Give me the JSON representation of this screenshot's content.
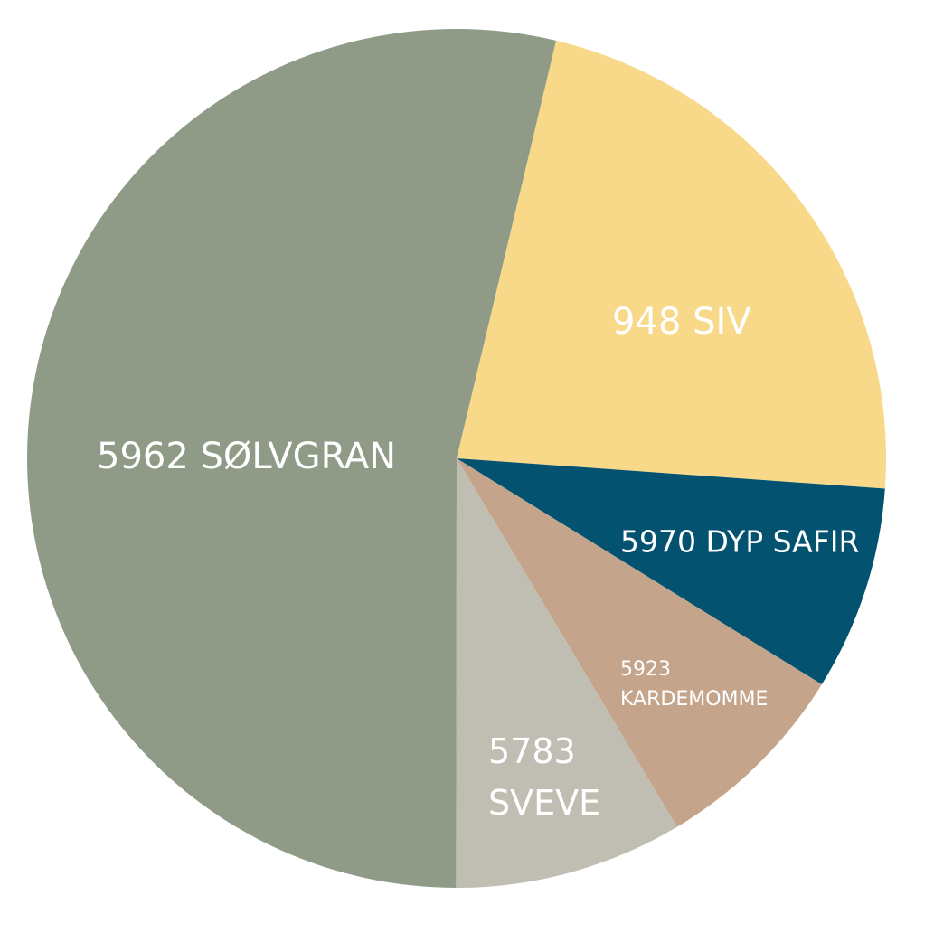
{
  "chart_data": {
    "type": "pie",
    "categories": [
      "948 SIV",
      "5970 DYP SAFIR",
      "5923 KARDEMOMME",
      "5783 SVEVE",
      "5962 SØLVGRAN"
    ],
    "values": [
      22.4,
      7.7,
      7.6,
      8.6,
      53.7
    ],
    "colors": [
      "#f8d98a",
      "#03526f",
      "#c4a58b",
      "#c0beb3",
      "#909b87"
    ]
  }
}
